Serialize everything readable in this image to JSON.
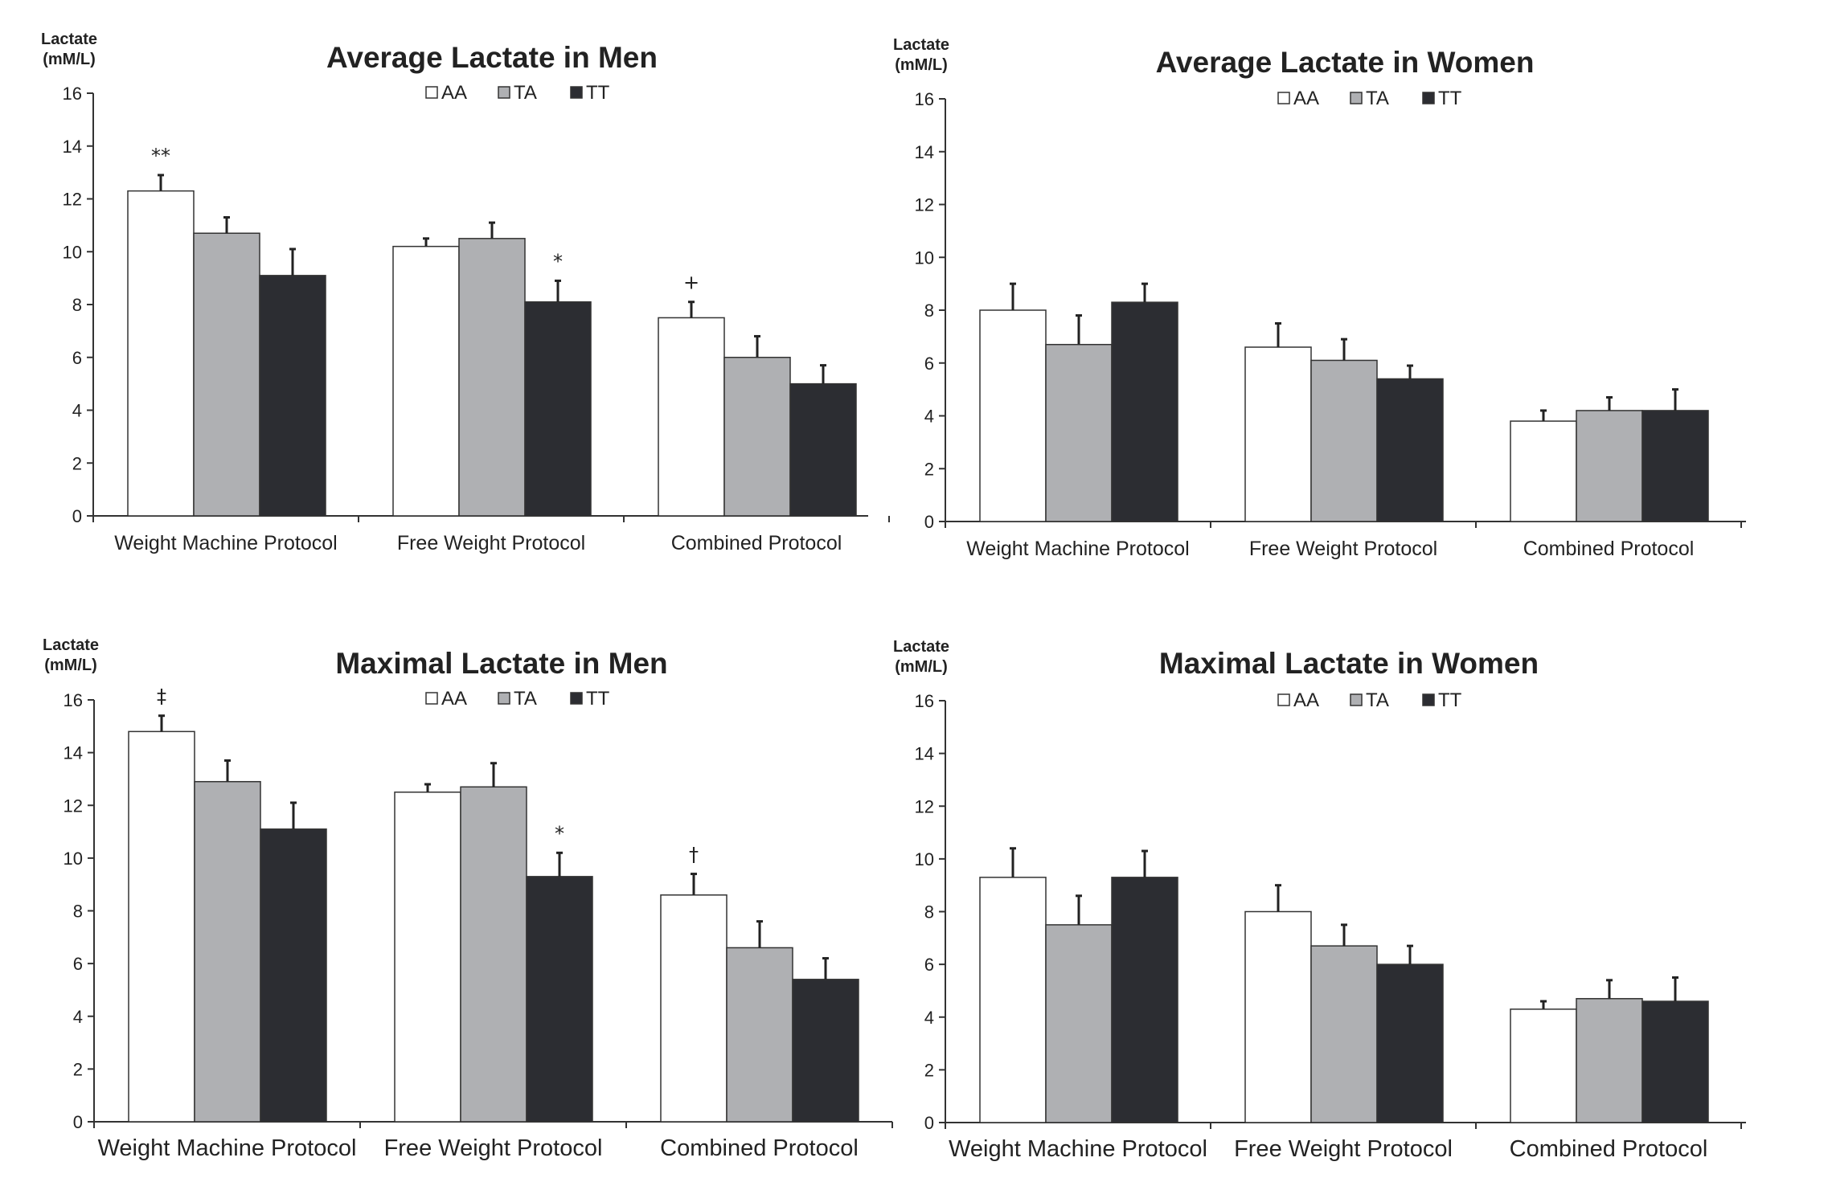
{
  "chart_data": [
    {
      "type": "bar",
      "title": "Average Lactate in Men",
      "ylabel": [
        "Lactate",
        "(mM/L)"
      ],
      "ylim": [
        0,
        16
      ],
      "yticks": [
        0,
        2,
        4,
        6,
        8,
        10,
        12,
        14,
        16
      ],
      "categories": [
        "Weight Machine Protocol",
        "Free Weight Protocol",
        "Combined Protocol"
      ],
      "legend_position": "top-center",
      "series": [
        {
          "name": "AA",
          "color": "#ffffff",
          "values": [
            12.3,
            10.2,
            7.5
          ],
          "errors": [
            0.6,
            0.3,
            0.6
          ]
        },
        {
          "name": "TA",
          "color": "#afb0b3",
          "values": [
            10.7,
            10.5,
            6.0
          ],
          "errors": [
            0.6,
            0.6,
            0.8
          ]
        },
        {
          "name": "TT",
          "color": "#2c2d32",
          "values": [
            9.1,
            8.1,
            5.0
          ],
          "errors": [
            1.0,
            0.8,
            0.7
          ]
        }
      ],
      "annotations": [
        {
          "category": 0,
          "series": 0,
          "text": "**"
        },
        {
          "category": 1,
          "series": 2,
          "text": "*"
        },
        {
          "category": 2,
          "series": 0,
          "text": "+"
        }
      ]
    },
    {
      "type": "bar",
      "title": "Average Lactate in Women",
      "ylabel": [
        "Lactate",
        "(mM/L)"
      ],
      "ylim": [
        0,
        16
      ],
      "yticks": [
        0,
        2,
        4,
        6,
        8,
        10,
        12,
        14,
        16
      ],
      "categories": [
        "Weight Machine Protocol",
        "Free Weight Protocol",
        "Combined Protocol"
      ],
      "legend_position": "top-center",
      "series": [
        {
          "name": "AA",
          "color": "#ffffff",
          "values": [
            8.0,
            6.6,
            3.8
          ],
          "errors": [
            1.0,
            0.9,
            0.4
          ]
        },
        {
          "name": "TA",
          "color": "#afb0b3",
          "values": [
            6.7,
            6.1,
            4.2
          ],
          "errors": [
            1.1,
            0.8,
            0.5
          ]
        },
        {
          "name": "TT",
          "color": "#2c2d32",
          "values": [
            8.3,
            5.4,
            4.2
          ],
          "errors": [
            0.7,
            0.5,
            0.8
          ]
        }
      ],
      "annotations": []
    },
    {
      "type": "bar",
      "title": "Maximal Lactate in Men",
      "ylabel": [
        "Lactate",
        "(mM/L)"
      ],
      "ylim": [
        0,
        16
      ],
      "yticks": [
        0,
        2,
        4,
        6,
        8,
        10,
        12,
        14,
        16
      ],
      "categories": [
        "Weight Machine Protocol",
        "Free Weight Protocol",
        "Combined Protocol"
      ],
      "legend_position": "top-center",
      "series": [
        {
          "name": "AA",
          "color": "#ffffff",
          "values": [
            14.8,
            12.5,
            8.6
          ],
          "errors": [
            0.6,
            0.3,
            0.8
          ]
        },
        {
          "name": "TA",
          "color": "#afb0b3",
          "values": [
            12.9,
            12.7,
            6.6
          ],
          "errors": [
            0.8,
            0.9,
            1.0
          ]
        },
        {
          "name": "TT",
          "color": "#2c2d32",
          "values": [
            11.1,
            9.3,
            5.4
          ],
          "errors": [
            1.0,
            0.9,
            0.8
          ]
        }
      ],
      "annotations": [
        {
          "category": 0,
          "series": 0,
          "text": "‡"
        },
        {
          "category": 1,
          "series": 2,
          "text": "*"
        },
        {
          "category": 2,
          "series": 0,
          "text": "†"
        }
      ]
    },
    {
      "type": "bar",
      "title": "Maximal Lactate in Women",
      "ylabel": [
        "Lactate",
        "(mM/L)"
      ],
      "ylim": [
        0,
        16
      ],
      "yticks": [
        0,
        2,
        4,
        6,
        8,
        10,
        12,
        14,
        16
      ],
      "categories": [
        "Weight Machine Protocol",
        "Free Weight Protocol",
        "Combined Protocol"
      ],
      "legend_position": "top-center",
      "series": [
        {
          "name": "AA",
          "color": "#ffffff",
          "values": [
            9.3,
            8.0,
            4.3
          ],
          "errors": [
            1.1,
            1.0,
            0.3
          ]
        },
        {
          "name": "TA",
          "color": "#afb0b3",
          "values": [
            7.5,
            6.7,
            4.7
          ],
          "errors": [
            1.1,
            0.8,
            0.7
          ]
        },
        {
          "name": "TT",
          "color": "#2c2d32",
          "values": [
            9.3,
            6.0,
            4.6
          ],
          "errors": [
            1.0,
            0.7,
            0.9
          ]
        }
      ],
      "annotations": []
    }
  ]
}
